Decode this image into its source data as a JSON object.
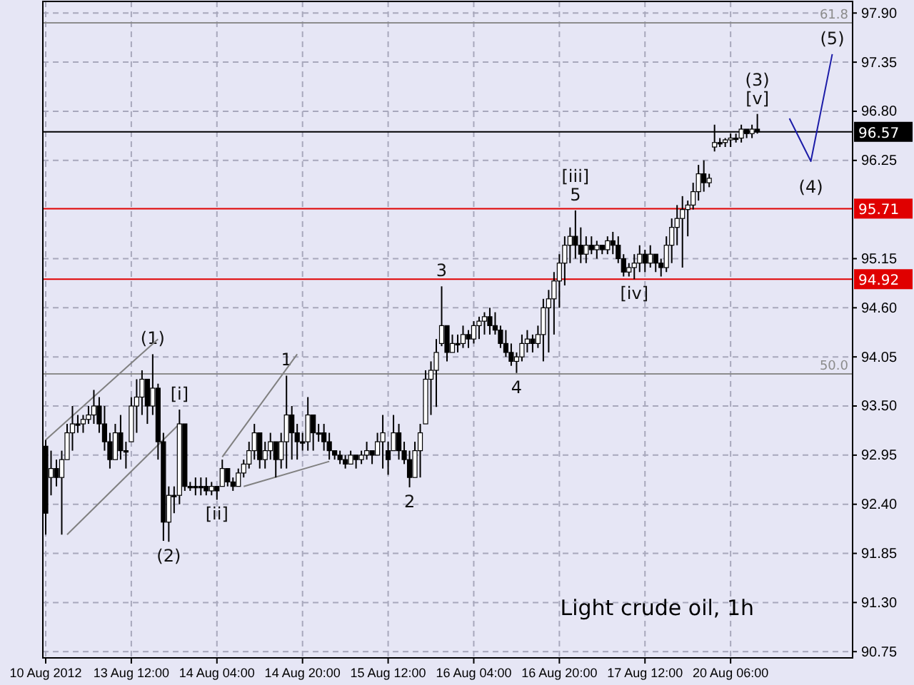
{
  "chart_data": {
    "type": "candlestick",
    "annotations": [
      "Light crude oil, 1h",
      {
        "text": "(1)",
        "y": 94.08
      },
      {
        "text": "(2)",
        "y": 91.98
      },
      {
        "text": "[i]",
        "y": 93.46
      },
      {
        "text": "[ii]",
        "y": 92.45
      },
      {
        "text": "1",
        "y": 93.84
      },
      {
        "text": "2",
        "y": 92.59
      },
      {
        "text": "3",
        "y": 94.84
      },
      {
        "text": "4",
        "y": 93.87
      },
      {
        "text": "61.8",
        "y": 97.79
      },
      {
        "text": "50.0",
        "y": 93.86
      },
      {
        "text": "[iii]\n5",
        "y": 95.69
      },
      {
        "text": "[iv]",
        "y": 94.92
      },
      {
        "text": "(3)\n[v]",
        "y": 96.77
      },
      {
        "text": "(4)",
        "y": 96.24
      },
      {
        "text": "(5)",
        "y": 97.44
      }
    ],
    "categories": [
      "10 Aug 2012",
      null,
      null,
      null,
      null,
      null,
      null,
      null,
      null,
      null,
      null,
      null,
      null,
      null,
      null,
      null,
      "13 Aug 12:00",
      null,
      null,
      null,
      null,
      null,
      null,
      null,
      null,
      null,
      null,
      null,
      null,
      null,
      null,
      null,
      "14 Aug 04:00",
      null,
      null,
      null,
      null,
      null,
      null,
      null,
      null,
      null,
      null,
      null,
      null,
      null,
      null,
      null,
      "14 Aug 20:00",
      null,
      null,
      null,
      null,
      null,
      null,
      null,
      null,
      null,
      null,
      null,
      null,
      null,
      null,
      null,
      "15 Aug 12:00",
      null,
      null,
      null,
      null,
      null,
      null,
      null,
      null,
      null,
      null,
      null,
      null,
      null,
      null,
      null,
      "16 Aug 04:00",
      null,
      null,
      null,
      null,
      null,
      null,
      null,
      null,
      null,
      null,
      null,
      null,
      null,
      null,
      null,
      "16 Aug 20:00",
      null,
      null,
      null,
      null,
      null,
      null,
      null,
      null,
      null,
      null,
      null,
      null,
      null,
      null,
      null,
      "17 Aug 12:00",
      null,
      null,
      null,
      null,
      null,
      null,
      null,
      null,
      null,
      null,
      null,
      null,
      null,
      null,
      null,
      "20 Aug 06:00",
      null,
      null,
      null,
      null,
      null,
      null,
      null,
      null,
      null,
      null,
      null,
      null,
      null,
      null,
      null,
      null,
      null,
      null,
      null,
      null,
      null,
      null
    ],
    "color": "#000000",
    "ohlc": [
      [
        93.05,
        93.12,
        92.06,
        92.3
      ],
      [
        92.7,
        93.0,
        92.5,
        92.8
      ],
      [
        92.8,
        92.9,
        92.6,
        92.7
      ],
      [
        92.7,
        93.0,
        92.06,
        92.9
      ],
      [
        92.9,
        93.3,
        92.9,
        93.2
      ],
      [
        93.2,
        93.5,
        93.0,
        93.3
      ],
      [
        93.3,
        93.4,
        93.2,
        93.3
      ],
      [
        93.3,
        93.4,
        93.2,
        93.35
      ],
      [
        93.35,
        93.5,
        93.3,
        93.4
      ],
      [
        93.4,
        93.68,
        93.3,
        93.5
      ],
      [
        93.5,
        93.6,
        93.2,
        93.3
      ],
      [
        93.3,
        93.5,
        93.0,
        93.1
      ],
      [
        93.1,
        93.2,
        92.8,
        92.9
      ],
      [
        92.9,
        93.3,
        92.9,
        93.2
      ],
      [
        93.2,
        93.4,
        92.9,
        93.0
      ],
      [
        93.0,
        93.1,
        92.8,
        93.0
      ],
      [
        93.1,
        93.6,
        93.1,
        93.5
      ],
      [
        93.5,
        93.8,
        93.2,
        93.6
      ],
      [
        93.6,
        93.9,
        93.4,
        93.8
      ],
      [
        93.8,
        93.8,
        93.3,
        93.5
      ],
      [
        93.5,
        94.08,
        93.4,
        93.7
      ],
      [
        93.7,
        93.75,
        92.9,
        93.1
      ],
      [
        93.1,
        93.2,
        91.99,
        92.2
      ],
      [
        92.2,
        92.6,
        91.98,
        92.5
      ],
      [
        92.5,
        92.6,
        92.3,
        92.5
      ],
      [
        92.5,
        93.46,
        92.4,
        93.3
      ],
      [
        93.3,
        93.3,
        92.55,
        92.6
      ],
      [
        92.6,
        92.65,
        92.55,
        92.6
      ],
      [
        92.6,
        92.7,
        92.5,
        92.6
      ],
      [
        92.6,
        92.7,
        92.5,
        92.6
      ],
      [
        92.6,
        92.7,
        92.5,
        92.55
      ],
      [
        92.55,
        92.65,
        92.5,
        92.6
      ],
      [
        92.6,
        92.6,
        92.45,
        92.55
      ],
      [
        92.6,
        92.9,
        92.6,
        92.8
      ],
      [
        92.8,
        92.8,
        92.6,
        92.65
      ],
      [
        92.65,
        92.7,
        92.55,
        92.6
      ],
      [
        92.6,
        92.8,
        92.6,
        92.75
      ],
      [
        92.75,
        92.9,
        92.7,
        92.85
      ],
      [
        92.85,
        93.1,
        92.8,
        93.0
      ],
      [
        93.0,
        93.3,
        92.9,
        93.2
      ],
      [
        93.2,
        93.2,
        92.8,
        92.9
      ],
      [
        92.9,
        93.1,
        92.8,
        93.0
      ],
      [
        93.0,
        93.2,
        92.9,
        93.1
      ],
      [
        93.1,
        93.1,
        92.7,
        92.9
      ],
      [
        92.9,
        93.2,
        92.8,
        93.1
      ],
      [
        93.1,
        93.84,
        92.8,
        93.4
      ],
      [
        93.4,
        93.5,
        92.9,
        93.2
      ],
      [
        93.2,
        93.3,
        92.9,
        93.1
      ],
      [
        93.1,
        93.2,
        93.0,
        93.1
      ],
      [
        93.1,
        93.6,
        93.0,
        93.4
      ],
      [
        93.4,
        93.4,
        93.0,
        93.2
      ],
      [
        93.2,
        93.3,
        93.1,
        93.2
      ],
      [
        93.2,
        93.3,
        93.0,
        93.1
      ],
      [
        93.1,
        93.2,
        92.9,
        93.0
      ],
      [
        93.0,
        93.0,
        92.9,
        92.95
      ],
      [
        92.95,
        93.0,
        92.85,
        92.9
      ],
      [
        92.9,
        92.95,
        92.8,
        92.85
      ],
      [
        92.85,
        93.0,
        92.85,
        92.95
      ],
      [
        92.95,
        92.95,
        92.8,
        92.9
      ],
      [
        92.9,
        93.0,
        92.85,
        92.95
      ],
      [
        92.95,
        93.1,
        92.9,
        93.0
      ],
      [
        93.0,
        93.0,
        92.85,
        92.95
      ],
      [
        92.95,
        93.2,
        92.95,
        93.1
      ],
      [
        93.1,
        93.4,
        92.8,
        93.2
      ],
      [
        93.0,
        93.1,
        92.73,
        92.9
      ],
      [
        93.0,
        93.4,
        93.0,
        93.2
      ],
      [
        93.2,
        93.3,
        92.9,
        93.0
      ],
      [
        93.0,
        93.1,
        92.85,
        92.9
      ],
      [
        92.9,
        93.0,
        92.59,
        92.7
      ],
      [
        92.7,
        93.1,
        92.7,
        93.0
      ],
      [
        93.0,
        93.3,
        92.7,
        93.2
      ],
      [
        93.3,
        93.9,
        93.3,
        93.8
      ],
      [
        93.8,
        94.0,
        93.4,
        93.9
      ],
      [
        93.9,
        94.25,
        93.49,
        94.1
      ],
      [
        94.2,
        94.84,
        94.17,
        94.4
      ],
      [
        94.4,
        94.4,
        94.0,
        94.1
      ],
      [
        94.1,
        94.3,
        94.1,
        94.2
      ],
      [
        94.2,
        94.3,
        94.1,
        94.2
      ],
      [
        94.2,
        94.4,
        94.15,
        94.3
      ],
      [
        94.3,
        94.35,
        94.15,
        94.25
      ],
      [
        94.25,
        94.45,
        94.2,
        94.4
      ],
      [
        94.4,
        94.5,
        94.25,
        94.45
      ],
      [
        94.45,
        94.55,
        94.3,
        94.5
      ],
      [
        94.5,
        94.6,
        94.3,
        94.4
      ],
      [
        94.4,
        94.55,
        94.3,
        94.35
      ],
      [
        94.35,
        94.4,
        94.15,
        94.2
      ],
      [
        94.2,
        94.35,
        94.05,
        94.1
      ],
      [
        94.1,
        94.2,
        93.95,
        94.0
      ],
      [
        94.0,
        94.1,
        93.87,
        94.05
      ],
      [
        94.05,
        94.3,
        94.0,
        94.2
      ],
      [
        94.2,
        94.35,
        94.1,
        94.25
      ],
      [
        94.25,
        94.3,
        94.1,
        94.2
      ],
      [
        94.2,
        94.4,
        94.15,
        94.3
      ],
      [
        94.3,
        94.7,
        94.0,
        94.6
      ],
      [
        94.6,
        94.8,
        94.1,
        94.7
      ],
      [
        94.7,
        95.0,
        94.3,
        94.9
      ],
      [
        94.9,
        95.2,
        94.6,
        95.1
      ],
      [
        95.1,
        95.4,
        94.85,
        95.3
      ],
      [
        95.3,
        95.5,
        95.1,
        95.4
      ],
      [
        95.4,
        95.69,
        95.15,
        95.3
      ],
      [
        95.3,
        95.5,
        95.1,
        95.2
      ],
      [
        95.2,
        95.4,
        95.1,
        95.3
      ],
      [
        95.3,
        95.4,
        95.2,
        95.25
      ],
      [
        95.25,
        95.35,
        95.15,
        95.3
      ],
      [
        95.3,
        95.3,
        95.2,
        95.25
      ],
      [
        95.25,
        95.4,
        95.2,
        95.35
      ],
      [
        95.35,
        95.45,
        95.2,
        95.3
      ],
      [
        95.3,
        95.4,
        95.1,
        95.15
      ],
      [
        95.15,
        95.2,
        94.95,
        95.0
      ],
      [
        95.0,
        95.1,
        94.95,
        95.05
      ],
      [
        95.05,
        95.2,
        94.92,
        95.1
      ],
      [
        95.1,
        95.3,
        95.0,
        95.2
      ],
      [
        95.2,
        95.25,
        95.0,
        95.1
      ],
      [
        95.1,
        95.3,
        95.05,
        95.2
      ],
      [
        95.2,
        95.2,
        95.0,
        95.1
      ],
      [
        95.1,
        95.15,
        94.95,
        95.05
      ],
      [
        95.05,
        95.4,
        95.0,
        95.3
      ],
      [
        95.3,
        95.6,
        95.1,
        95.5
      ],
      [
        95.5,
        95.75,
        95.3,
        95.6
      ],
      [
        95.6,
        95.85,
        95.05,
        95.7
      ],
      [
        95.7,
        95.8,
        95.4,
        95.75
      ],
      [
        95.75,
        96.0,
        95.7,
        95.9
      ],
      [
        95.9,
        96.2,
        95.8,
        96.1
      ],
      [
        96.1,
        96.25,
        95.9,
        96.0
      ],
      [
        96.0,
        96.1,
        95.95,
        96.05
      ],
      [
        96.4,
        96.65,
        96.35,
        96.45
      ],
      [
        96.45,
        96.5,
        96.4,
        96.45
      ],
      [
        96.45,
        96.5,
        96.4,
        96.48
      ],
      [
        96.48,
        96.55,
        96.4,
        96.5
      ],
      [
        96.5,
        96.55,
        96.45,
        96.5
      ],
      [
        96.5,
        96.65,
        96.45,
        96.6
      ],
      [
        96.6,
        96.6,
        96.5,
        96.55
      ],
      [
        96.55,
        96.65,
        96.5,
        96.6
      ],
      [
        96.6,
        96.77,
        96.55,
        96.57
      ],
      null,
      null,
      null,
      null,
      null,
      null,
      null,
      null,
      null,
      null,
      null,
      null,
      null,
      null,
      null,
      null,
      null
    ],
    "series": [
      {
        "type": "line",
        "color": "#808080",
        "values": [
          93.12,
          null,
          null,
          null,
          null,
          null,
          null,
          null,
          null,
          null,
          null,
          null,
          null,
          null,
          null,
          null,
          null,
          null,
          null,
          null,
          null,
          94.25,
          null,
          null,
          null,
          null,
          null,
          null,
          null,
          null,
          null,
          null,
          null,
          null,
          null,
          null,
          null,
          null,
          null,
          null,
          null,
          null,
          null,
          null,
          null,
          null,
          null,
          null,
          null,
          null,
          null,
          null,
          null,
          null,
          null,
          null,
          null,
          null,
          null,
          null,
          null,
          null,
          null,
          null,
          null,
          null,
          null,
          null,
          null,
          null,
          null,
          null,
          null,
          null,
          null,
          null,
          null,
          null,
          null,
          null,
          null,
          null,
          null,
          null,
          null,
          null,
          null,
          null,
          null,
          null,
          null,
          null,
          null,
          null,
          null,
          null,
          null,
          null,
          null,
          null,
          null,
          null,
          null,
          null,
          null,
          null,
          null,
          null,
          null,
          null,
          null,
          null,
          null,
          null,
          null,
          null,
          null,
          null,
          null,
          null,
          null,
          null,
          null,
          null,
          null,
          null,
          null,
          null,
          null,
          null,
          null,
          null,
          null,
          null,
          null,
          null,
          null,
          null,
          null,
          null,
          null,
          null,
          null,
          null,
          null,
          null,
          null,
          null,
          null,
          null,
          null
        ]
      },
      {
        "type": "line",
        "color": "#808080",
        "values": [
          null,
          null,
          null,
          null,
          92.06,
          null,
          null,
          null,
          null,
          null,
          null,
          null,
          null,
          null,
          null,
          null,
          null,
          null,
          null,
          null,
          null,
          null,
          null,
          null,
          null,
          93.3,
          null,
          null,
          null,
          null,
          null,
          null,
          null,
          null,
          null,
          null,
          null,
          null,
          null,
          null,
          null,
          null,
          null,
          null,
          null,
          null,
          null,
          null,
          null,
          null,
          null,
          null,
          null,
          null,
          null,
          null,
          null,
          null,
          null,
          null,
          null,
          null,
          null,
          null,
          null,
          null,
          null,
          null,
          null,
          null,
          null,
          null,
          null,
          null,
          null,
          null,
          null,
          null,
          null,
          null,
          null,
          null,
          null,
          null,
          null,
          null,
          null,
          null,
          null,
          null,
          null,
          null,
          null,
          null,
          null,
          null,
          null,
          null,
          null,
          null,
          null,
          null,
          null,
          null,
          null,
          null,
          null,
          null,
          null,
          null,
          null,
          null,
          null,
          null,
          null,
          null,
          null,
          null,
          null,
          null,
          null,
          null,
          null,
          null,
          null,
          null,
          null,
          null,
          null,
          null,
          null,
          null,
          null,
          null,
          null,
          null,
          null,
          null,
          null,
          null,
          null,
          null,
          null,
          null,
          null,
          null,
          null,
          null,
          null,
          null,
          null
        ]
      },
      {
        "type": "line",
        "color": "#808080",
        "values": [
          null,
          null,
          null,
          null,
          null,
          null,
          null,
          null,
          null,
          null,
          null,
          null,
          null,
          null,
          null,
          null,
          null,
          null,
          null,
          null,
          null,
          null,
          null,
          null,
          null,
          null,
          null,
          null,
          null,
          null,
          null,
          null,
          null,
          92.93,
          null,
          null,
          null,
          null,
          null,
          null,
          null,
          null,
          null,
          null,
          null,
          null,
          null,
          94.08,
          null,
          null,
          null,
          null,
          null,
          null,
          null,
          null,
          null,
          null,
          null,
          null,
          null,
          null,
          null,
          null,
          null,
          null,
          null,
          null,
          null,
          null,
          null,
          null,
          null,
          null,
          null,
          null,
          null,
          null,
          null,
          null,
          null,
          null,
          null,
          null,
          null,
          null,
          null,
          null,
          null,
          null,
          null,
          null,
          null,
          null,
          null,
          null,
          null,
          null,
          null,
          null,
          null,
          null,
          null,
          null,
          null,
          null,
          null,
          null,
          null,
          null,
          null,
          null,
          null,
          null,
          null,
          null,
          null,
          null,
          null,
          null,
          null,
          null,
          null,
          null,
          null,
          null,
          null,
          null,
          null,
          null,
          null,
          null,
          null,
          null,
          null,
          null,
          null,
          null,
          null,
          null,
          null,
          null,
          null,
          null,
          null,
          null,
          null,
          null,
          null,
          null,
          null
        ]
      },
      {
        "type": "line",
        "color": "#808080",
        "values": [
          null,
          null,
          null,
          null,
          null,
          null,
          null,
          null,
          null,
          null,
          null,
          null,
          null,
          null,
          null,
          null,
          null,
          null,
          null,
          null,
          null,
          null,
          null,
          null,
          null,
          null,
          null,
          null,
          null,
          null,
          null,
          null,
          null,
          null,
          null,
          null,
          null,
          92.6,
          null,
          null,
          null,
          null,
          null,
          null,
          null,
          null,
          null,
          null,
          null,
          null,
          null,
          null,
          null,
          92.88,
          null,
          null,
          null,
          null,
          null,
          null,
          null,
          null,
          null,
          null,
          null,
          null,
          null,
          null,
          null,
          null,
          null,
          null,
          null,
          null,
          null,
          null,
          null,
          null,
          null,
          null,
          null,
          null,
          null,
          null,
          null,
          null,
          null,
          null,
          null,
          null,
          null,
          null,
          null,
          null,
          null,
          null,
          null,
          null,
          null,
          null,
          null,
          null,
          null,
          null,
          null,
          null,
          null,
          null,
          null,
          null,
          null,
          null,
          null,
          null,
          null,
          null,
          null,
          null,
          null,
          null,
          null,
          null,
          null,
          null,
          null,
          null,
          null,
          null,
          null,
          null,
          null,
          null,
          null,
          null,
          null,
          null,
          null,
          null,
          null,
          null,
          null,
          null,
          null,
          null,
          null,
          null,
          null,
          null,
          null,
          null,
          null
        ]
      },
      {
        "type": "line",
        "color": "#1c1ca8",
        "values": [
          null,
          null,
          null,
          null,
          null,
          null,
          null,
          null,
          null,
          null,
          null,
          null,
          null,
          null,
          null,
          null,
          null,
          null,
          null,
          null,
          null,
          null,
          null,
          null,
          null,
          null,
          null,
          null,
          null,
          null,
          null,
          null,
          null,
          null,
          null,
          null,
          null,
          null,
          null,
          null,
          null,
          null,
          null,
          null,
          null,
          null,
          null,
          null,
          null,
          null,
          null,
          null,
          null,
          null,
          null,
          null,
          null,
          null,
          null,
          null,
          null,
          null,
          null,
          null,
          null,
          null,
          null,
          null,
          null,
          null,
          null,
          null,
          null,
          null,
          null,
          null,
          null,
          null,
          null,
          null,
          null,
          null,
          null,
          null,
          null,
          null,
          null,
          null,
          null,
          null,
          null,
          null,
          null,
          null,
          null,
          null,
          null,
          null,
          null,
          null,
          null,
          null,
          null,
          null,
          null,
          null,
          null,
          null,
          null,
          null,
          null,
          null,
          null,
          null,
          null,
          null,
          null,
          null,
          null,
          null,
          null,
          null,
          null,
          null,
          null,
          null,
          null,
          null,
          null,
          null,
          null,
          null,
          null,
          null,
          null,
          null,
          null,
          null,
          null,
          96.72,
          null,
          null,
          null,
          96.24,
          null,
          null,
          null,
          97.44,
          null,
          null,
          null
        ]
      }
    ],
    "ylim": [
      90.68,
      98.03
    ],
    "yticks": [
      {
        "value": 90.75,
        "label": "90.75"
      },
      {
        "value": 91.3,
        "label": "91.30"
      },
      {
        "value": 91.85,
        "label": "91.85"
      },
      {
        "value": 92.4,
        "label": "92.40"
      },
      {
        "value": 92.95,
        "label": "92.95"
      },
      {
        "value": 93.5,
        "label": "93.50"
      },
      {
        "value": 94.05,
        "label": "94.05"
      },
      {
        "value": 94.6,
        "label": "94.60"
      },
      {
        "value": 95.15,
        "label": "95.15"
      },
      {
        "value": 96.25,
        "label": "96.25"
      },
      {
        "value": 96.8,
        "label": "96.80"
      },
      {
        "value": 97.35,
        "label": "97.35"
      },
      {
        "value": 97.9,
        "label": "97.90"
      }
    ],
    "grid": true,
    "ref_lines": [
      {
        "axis": "y",
        "value": 97.79,
        "color": "#8c8c8c"
      },
      {
        "axis": "y",
        "value": 93.86,
        "color": "#8c8c8c"
      },
      {
        "axis": "y",
        "value": 96.57,
        "label": "96.57",
        "color": "#000000"
      },
      {
        "axis": "y",
        "value": 95.71,
        "label": "95.71",
        "color": "#e00000"
      },
      {
        "axis": "y",
        "value": 94.92,
        "label": "94.92",
        "color": "#e00000"
      }
    ]
  }
}
